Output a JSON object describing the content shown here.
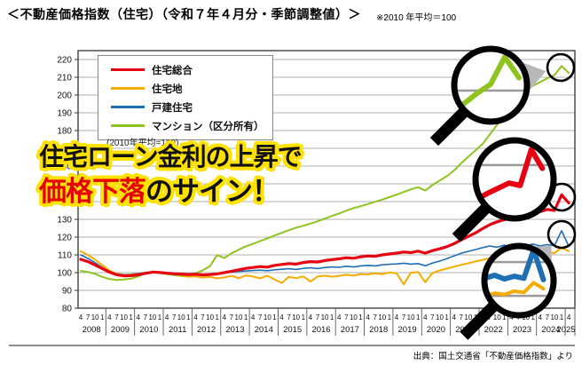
{
  "page": {
    "title": "＜不動産価格指数（住宅）（令和７年４月分・季節調整値）＞",
    "title_note": "※2010 年平均＝100",
    "source": "出典：国土交通省「不動産価格指数」より"
  },
  "overlay": {
    "line1": "住宅ローン金利の上昇で",
    "line2_highlight": "価格下落",
    "line2_rest": "のサイン！",
    "text_color": "#111111",
    "highlight_color": "#e60000",
    "outline_color": "#ffe100"
  },
  "legend": {
    "note": "(2010年平均=100)"
  },
  "chart_data": {
    "type": "line",
    "title": "不動産価格指数（住宅）",
    "x_unit": "quarter",
    "x_start_label": "2008-04",
    "x_end_label": "2025-04",
    "x_tick_pattern": [
      "4",
      "7",
      "10",
      "1"
    ],
    "years": [
      "2008",
      "2009",
      "2010",
      "2011",
      "2012",
      "2013",
      "2014",
      "2015",
      "2016",
      "2017",
      "2018",
      "2019",
      "2020",
      "2021",
      "2022",
      "2023",
      "2024",
      "2025"
    ],
    "ylim": [
      80,
      220
    ],
    "y_tick_step": 10,
    "grid": true,
    "legend_position": "top-left",
    "axis_note": "2010年平均=100",
    "series": [
      {
        "name": "住宅総合",
        "color": "#e60012",
        "values": [
          107.5,
          106.2,
          104.3,
          102.3,
          100.3,
          98.8,
          98.2,
          98.3,
          98.8,
          99.6,
          100.3,
          100.1,
          99.7,
          99.4,
          99.2,
          98.9,
          99.1,
          98.7,
          98.9,
          99.3,
          100.0,
          100.8,
          101.6,
          102.4,
          102.9,
          103.4,
          103.1,
          104.1,
          104.6,
          105.1,
          104.8,
          105.7,
          106.2,
          106.0,
          106.8,
          107.3,
          107.8,
          108.4,
          108.1,
          108.9,
          109.4,
          109.2,
          110.0,
          110.5,
          111.0,
          111.6,
          111.3,
          112.1,
          111.0,
          112.4,
          113.4,
          114.6,
          116.3,
          118.4,
          120.4,
          122.4,
          124.8,
          127.0,
          128.6,
          129.8,
          130.8,
          132.0,
          131.5,
          133.0,
          134.3,
          135.6,
          135.0,
          143.8,
          139.2
        ]
      },
      {
        "name": "住宅地",
        "color": "#f6ab00",
        "values": [
          112.0,
          110.0,
          107.3,
          104.2,
          101.2,
          99.3,
          98.6,
          98.9,
          99.2,
          99.9,
          100.4,
          99.9,
          99.3,
          98.6,
          98.1,
          97.7,
          97.9,
          97.2,
          97.6,
          96.8,
          97.3,
          98.2,
          96.9,
          98.4,
          97.8,
          96.8,
          98.3,
          96.2,
          94.2,
          97.6,
          96.9,
          97.9,
          95.0,
          97.8,
          98.3,
          97.7,
          98.2,
          98.8,
          98.3,
          99.2,
          99.0,
          99.6,
          99.1,
          100.1,
          99.6,
          93.4,
          99.9,
          100.4,
          94.6,
          99.8,
          101.2,
          102.3,
          103.3,
          104.4,
          105.3,
          106.3,
          107.2,
          108.2,
          108.8,
          109.3,
          109.9,
          110.4,
          109.9,
          110.8,
          110.4,
          111.4,
          111.0,
          113.9,
          112.1
        ]
      },
      {
        "name": "戸建住宅",
        "color": "#1f6fb5",
        "values": [
          110.0,
          108.0,
          105.6,
          102.9,
          100.6,
          99.4,
          98.9,
          99.1,
          99.5,
          100.1,
          100.4,
          100.0,
          99.9,
          99.6,
          99.4,
          99.2,
          99.0,
          98.9,
          99.1,
          99.4,
          99.9,
          100.3,
          100.7,
          100.9,
          101.2,
          101.4,
          101.1,
          101.6,
          101.9,
          102.2,
          101.8,
          102.4,
          102.7,
          102.3,
          102.9,
          103.2,
          103.0,
          103.6,
          103.2,
          103.8,
          104.1,
          103.8,
          104.4,
          104.7,
          104.9,
          105.3,
          104.8,
          105.1,
          103.9,
          105.4,
          106.5,
          107.9,
          109.4,
          110.9,
          112.0,
          113.0,
          114.1,
          115.0,
          114.3,
          115.4,
          114.8,
          115.9,
          115.2,
          116.1,
          115.0,
          115.8,
          115.2,
          123.6,
          114.8
        ]
      },
      {
        "name": "マンション（区分所有）",
        "color": "#8fc31f",
        "values": [
          101.0,
          100.4,
          99.3,
          97.6,
          96.4,
          95.9,
          96.1,
          96.6,
          97.9,
          99.6,
          100.4,
          100.0,
          99.2,
          98.6,
          98.4,
          98.8,
          99.6,
          101.3,
          103.6,
          109.9,
          108.2,
          110.9,
          112.9,
          114.8,
          116.2,
          117.8,
          119.3,
          120.9,
          122.4,
          123.9,
          125.3,
          126.4,
          127.6,
          128.9,
          130.4,
          131.9,
          133.3,
          134.9,
          136.3,
          137.4,
          138.6,
          139.9,
          141.1,
          142.5,
          143.9,
          145.4,
          146.9,
          148.1,
          146.2,
          149.3,
          151.8,
          154.3,
          157.5,
          161.6,
          165.3,
          168.9,
          172.5,
          177.8,
          183.2,
          188.9,
          195.8,
          199.4,
          202.4,
          205.2,
          207.3,
          209.4,
          211.2,
          216.3,
          212.4
        ]
      }
    ],
    "annotations": {
      "magnifier_highlights": [
        {
          "series": "マンション（区分所有）",
          "highlight": "末尾のピークと反落"
        },
        {
          "series": "住宅総合",
          "highlight": "末尾のピークと反落"
        },
        {
          "series": "戸建住宅",
          "highlight": "末尾のスパイクと反落"
        }
      ]
    }
  }
}
